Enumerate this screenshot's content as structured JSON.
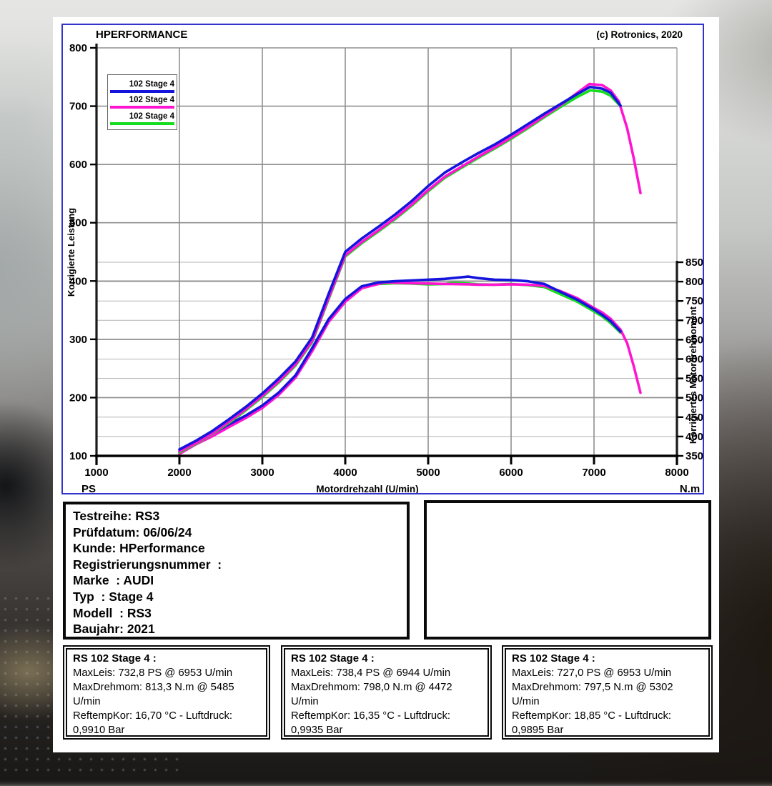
{
  "chart": {
    "title": "HPERFORMANCE",
    "copyright": "(c) Rotronics, 2020",
    "x_axis_label": "Motordrehzahl (U/min)",
    "left_unit": "PS",
    "right_unit": "N.m",
    "y_left_label": "Korrigierte Leistung",
    "y_right_label": "Korrigiertes Motordrehmoment",
    "legend": [
      {
        "label": "102 Stage 4",
        "color": "#1414dd"
      },
      {
        "label": "102 Stage 4",
        "color": "#ff14d2"
      },
      {
        "label": "102 Stage 4",
        "color": "#16dd1e"
      }
    ]
  },
  "chart_data": {
    "type": "line",
    "title": "HPERFORMANCE",
    "xlabel": "Motordrehzahl (U/min)",
    "ylabel_left": "Korrigierte Leistung (PS)",
    "ylabel_right": "Korrigiertes Motordrehmoment (N.m)",
    "x_range": [
      1000,
      8000
    ],
    "x_ticks": [
      1000,
      2000,
      3000,
      4000,
      5000,
      6000,
      7000,
      8000
    ],
    "y_left_range": [
      100,
      800
    ],
    "y_left_ticks": [
      100,
      200,
      300,
      400,
      500,
      600,
      700,
      800
    ],
    "y_right_range": [
      350,
      850
    ],
    "y_right_ticks": [
      350,
      400,
      450,
      500,
      550,
      600,
      650,
      700,
      750,
      800,
      850
    ],
    "grid": true,
    "legend_position": "top-left",
    "series": [
      {
        "key": "torque-green",
        "name": "102 Stage 4 (Drehmoment)",
        "color": "#16dd1e",
        "axis": "right",
        "points": [
          [
            2000,
            358
          ],
          [
            2200,
            384
          ],
          [
            2400,
            404
          ],
          [
            2600,
            428
          ],
          [
            2800,
            450
          ],
          [
            3000,
            476
          ],
          [
            3200,
            510
          ],
          [
            3400,
            554
          ],
          [
            3600,
            624
          ],
          [
            3800,
            699
          ],
          [
            4000,
            751
          ],
          [
            4200,
            785
          ],
          [
            4400,
            794
          ],
          [
            4600,
            796
          ],
          [
            4800,
            795
          ],
          [
            5000,
            793
          ],
          [
            5200,
            794
          ],
          [
            5302,
            797
          ],
          [
            5485,
            795
          ],
          [
            5600,
            793
          ],
          [
            5800,
            792
          ],
          [
            6000,
            794
          ],
          [
            6200,
            791
          ],
          [
            6400,
            786
          ],
          [
            6600,
            767
          ],
          [
            6800,
            748
          ],
          [
            7000,
            723
          ],
          [
            7100,
            710
          ],
          [
            7200,
            693
          ],
          [
            7320,
            668
          ]
        ]
      },
      {
        "key": "torque-magenta",
        "name": "102 Stage 4 (Drehmoment)",
        "color": "#ff14d2",
        "axis": "right",
        "points": [
          [
            2000,
            355
          ],
          [
            2200,
            380
          ],
          [
            2400,
            401
          ],
          [
            2600,
            425
          ],
          [
            2800,
            448
          ],
          [
            3000,
            474
          ],
          [
            3200,
            508
          ],
          [
            3400,
            552
          ],
          [
            3600,
            620
          ],
          [
            3800,
            696
          ],
          [
            4000,
            748
          ],
          [
            4200,
            783
          ],
          [
            4472,
            798
          ],
          [
            4600,
            797
          ],
          [
            4800,
            796
          ],
          [
            5000,
            795
          ],
          [
            5200,
            794
          ],
          [
            5485,
            793
          ],
          [
            5600,
            792
          ],
          [
            5800,
            792
          ],
          [
            6000,
            793
          ],
          [
            6200,
            792
          ],
          [
            6400,
            789
          ],
          [
            6600,
            775
          ],
          [
            6800,
            757
          ],
          [
            7000,
            732
          ],
          [
            7100,
            720
          ],
          [
            7200,
            704
          ],
          [
            7320,
            676
          ],
          [
            7400,
            641
          ],
          [
            7480,
            581
          ],
          [
            7560,
            513
          ]
        ]
      },
      {
        "key": "torque-blue",
        "name": "102 Stage 4 (Drehmoment)",
        "color": "#1414dd",
        "axis": "right",
        "points": [
          [
            2000,
            362
          ],
          [
            2200,
            388
          ],
          [
            2400,
            408
          ],
          [
            2600,
            432
          ],
          [
            2800,
            454
          ],
          [
            3000,
            480
          ],
          [
            3200,
            514
          ],
          [
            3400,
            558
          ],
          [
            3600,
            628
          ],
          [
            3800,
            703
          ],
          [
            4000,
            755
          ],
          [
            4200,
            788
          ],
          [
            4400,
            798
          ],
          [
            4600,
            801
          ],
          [
            4800,
            803
          ],
          [
            5000,
            805
          ],
          [
            5200,
            807
          ],
          [
            5485,
            813
          ],
          [
            5600,
            809
          ],
          [
            5800,
            805
          ],
          [
            6000,
            804
          ],
          [
            6200,
            801
          ],
          [
            6400,
            794
          ],
          [
            6600,
            773
          ],
          [
            6800,
            753
          ],
          [
            7000,
            728
          ],
          [
            7100,
            714
          ],
          [
            7200,
            698
          ],
          [
            7320,
            671
          ]
        ]
      },
      {
        "key": "power-green",
        "name": "102 Stage 4 (Leistung)",
        "color": "#16dd1e",
        "axis": "left",
        "points": [
          [
            2000,
            106
          ],
          [
            2200,
            121
          ],
          [
            2400,
            138
          ],
          [
            2600,
            157
          ],
          [
            2800,
            178
          ],
          [
            3000,
            201
          ],
          [
            3200,
            226
          ],
          [
            3400,
            255
          ],
          [
            3600,
            295
          ],
          [
            3800,
            369
          ],
          [
            4000,
            442
          ],
          [
            4200,
            465
          ],
          [
            4400,
            485
          ],
          [
            4600,
            506
          ],
          [
            4800,
            529
          ],
          [
            5000,
            554
          ],
          [
            5200,
            577
          ],
          [
            5400,
            594
          ],
          [
            5600,
            611
          ],
          [
            5800,
            627
          ],
          [
            6000,
            644
          ],
          [
            6200,
            662
          ],
          [
            6400,
            681
          ],
          [
            6600,
            699
          ],
          [
            6800,
            716
          ],
          [
            6953,
            727
          ],
          [
            7100,
            725
          ],
          [
            7200,
            718
          ],
          [
            7320,
            700
          ]
        ]
      },
      {
        "key": "power-magenta",
        "name": "102 Stage 4 (Leistung)",
        "color": "#ff14d2",
        "axis": "left",
        "points": [
          [
            2000,
            108
          ],
          [
            2200,
            122
          ],
          [
            2400,
            139
          ],
          [
            2600,
            159
          ],
          [
            2800,
            180
          ],
          [
            3000,
            203
          ],
          [
            3200,
            228
          ],
          [
            3400,
            257
          ],
          [
            3600,
            297
          ],
          [
            3800,
            371
          ],
          [
            4000,
            444
          ],
          [
            4200,
            467
          ],
          [
            4400,
            487
          ],
          [
            4600,
            508
          ],
          [
            4800,
            531
          ],
          [
            5000,
            556
          ],
          [
            5200,
            579
          ],
          [
            5400,
            596
          ],
          [
            5600,
            613
          ],
          [
            5800,
            629
          ],
          [
            6000,
            646
          ],
          [
            6200,
            664
          ],
          [
            6400,
            683
          ],
          [
            6600,
            702
          ],
          [
            6800,
            723
          ],
          [
            6944,
            738
          ],
          [
            7100,
            736
          ],
          [
            7200,
            727
          ],
          [
            7300,
            708
          ],
          [
            7400,
            662
          ],
          [
            7480,
            610
          ],
          [
            7560,
            551
          ]
        ]
      },
      {
        "key": "power-blue",
        "name": "102 Stage 4 (Leistung)",
        "color": "#1414dd",
        "axis": "left",
        "points": [
          [
            2000,
            111
          ],
          [
            2200,
            126
          ],
          [
            2400,
            143
          ],
          [
            2600,
            163
          ],
          [
            2800,
            184
          ],
          [
            3000,
            207
          ],
          [
            3200,
            233
          ],
          [
            3400,
            262
          ],
          [
            3600,
            303
          ],
          [
            3800,
            378
          ],
          [
            4000,
            450
          ],
          [
            4200,
            473
          ],
          [
            4400,
            493
          ],
          [
            4600,
            514
          ],
          [
            4800,
            537
          ],
          [
            5000,
            563
          ],
          [
            5200,
            586
          ],
          [
            5400,
            603
          ],
          [
            5600,
            619
          ],
          [
            5800,
            634
          ],
          [
            6000,
            651
          ],
          [
            6200,
            669
          ],
          [
            6400,
            687
          ],
          [
            6600,
            704
          ],
          [
            6800,
            721
          ],
          [
            6953,
            733
          ],
          [
            7100,
            730
          ],
          [
            7200,
            723
          ],
          [
            7320,
            701
          ]
        ]
      }
    ]
  },
  "info_box": {
    "lines": [
      "Testreihe: RS3",
      "Prüfdatum: 06/06/24",
      "Kunde: HPerformance",
      "Registrierungsnummer  :",
      "Marke  : AUDI",
      "Typ  : Stage 4",
      "Modell  : RS3",
      "Baujahr: 2021"
    ]
  },
  "result_boxes": [
    {
      "title": "RS 102 Stage 4 :",
      "lines": [
        "MaxLeis: 732,8 PS @ 6953 U/min",
        "MaxDrehmom: 813,3 N.m @ 5485 U/min",
        "ReftempKor: 16,70 °C - Luftdruck: 0,9910 Bar"
      ]
    },
    {
      "title": "RS 102 Stage 4 :",
      "lines": [
        "MaxLeis: 738,4 PS @ 6944 U/min",
        "MaxDrehmom: 798,0 N.m @ 4472 U/min",
        "ReftempKor: 16,35 °C - Luftdruck: 0,9935 Bar"
      ]
    },
    {
      "title": "RS 102 Stage 4 :",
      "lines": [
        "MaxLeis: 727,0 PS @ 6953 U/min",
        "MaxDrehmom: 797,5 N.m @ 5302 U/min",
        "ReftempKor: 18,85 °C - Luftdruck: 0,9895 Bar"
      ]
    }
  ]
}
